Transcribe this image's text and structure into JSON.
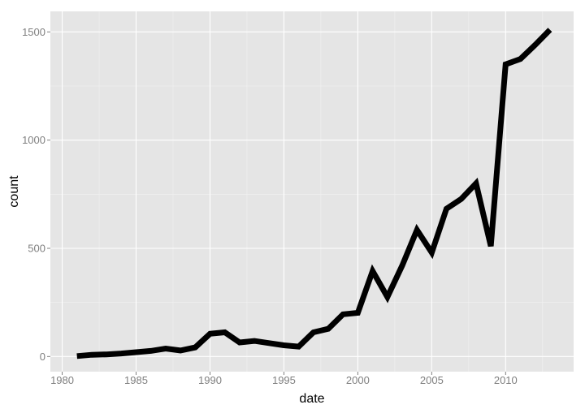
{
  "chart_data": {
    "type": "line",
    "title": "",
    "xlabel": "date",
    "ylabel": "count",
    "xlim": [
      1979.2,
      2014.6
    ],
    "ylim": [
      -70,
      1595
    ],
    "x_ticks": [
      1980,
      1985,
      1990,
      1995,
      2000,
      2005,
      2010
    ],
    "y_ticks": [
      0,
      500,
      1000,
      1500
    ],
    "grid": true,
    "background": "#e5e5e5",
    "line_color": "#000000",
    "series": [
      {
        "x": [
          1981,
          1982,
          1983,
          1984,
          1985,
          1986,
          1987,
          1988,
          1989,
          1990,
          1991,
          1992,
          1993,
          1994,
          1995,
          1996,
          1997,
          1998,
          1999,
          2000,
          2001,
          2002,
          2003,
          2004,
          2005,
          2006,
          2007,
          2008,
          2009,
          2010,
          2011,
          2012,
          2013
        ],
        "y": [
          2,
          8,
          10,
          14,
          20,
          26,
          37,
          28,
          42,
          105,
          112,
          65,
          72,
          62,
          52,
          46,
          112,
          128,
          195,
          202,
          395,
          275,
          420,
          585,
          480,
          683,
          728,
          800,
          510,
          1350,
          1375,
          1440,
          1510
        ]
      }
    ]
  }
}
